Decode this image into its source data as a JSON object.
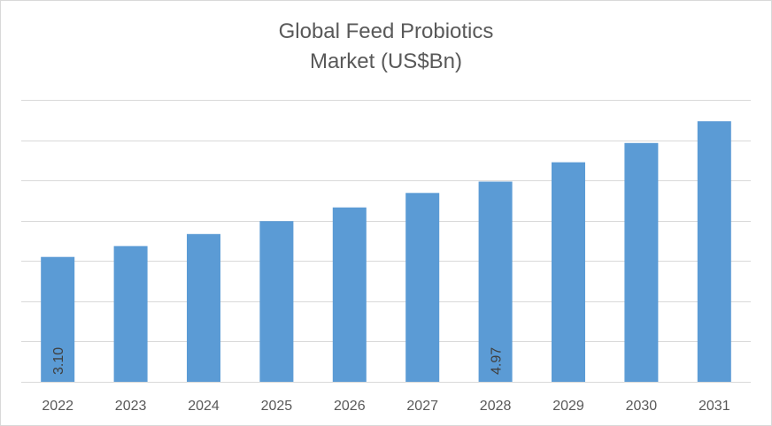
{
  "chart_data": {
    "type": "bar",
    "title_lines": [
      "Global Feed Probiotics",
      "Market (US$Bn)"
    ],
    "categories": [
      "2022",
      "2023",
      "2024",
      "2025",
      "2026",
      "2027",
      "2028",
      "2029",
      "2030",
      "2031"
    ],
    "values": [
      3.1,
      3.37,
      3.67,
      3.99,
      4.33,
      4.69,
      4.97,
      5.45,
      5.93,
      6.47
    ],
    "data_labels": [
      {
        "index": 0,
        "text": "3.10"
      },
      {
        "index": 6,
        "text": "4.97"
      }
    ],
    "ylim": [
      0,
      7
    ],
    "y_gridlines": [
      0,
      1,
      2,
      3,
      4,
      5,
      6,
      7
    ],
    "y_tick_labels_shown": false,
    "grid": true,
    "legend": "none",
    "colors": {
      "bar": "#5b9bd5",
      "grid": "#d9d9d9",
      "text": "#595959",
      "label": "#404040"
    }
  }
}
